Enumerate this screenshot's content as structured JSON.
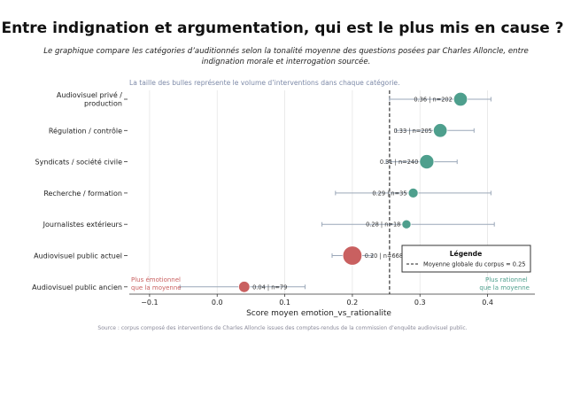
{
  "title": "Entre indignation et argumentation, qui est le plus mis en cause ?",
  "subtitle": "Le graphique compare les catégories d’auditionnés selon la tonalité moyenne des questions posées par Charles Alloncle, entre indignation morale et interrogation sourcée.",
  "source": "Source : corpus composé des interventions de Charles Alloncle issues des comptes-rendus de la commission d’enquête audiovisuel public.",
  "colors": {
    "emotion": "#c96060",
    "rational": "#4e9f8d",
    "error_bar": "#9aa7b8",
    "mean_line": "#222222",
    "note_text": "#7d8aa8",
    "grid": "#e6e6e6"
  },
  "chart_data": {
    "type": "scatter",
    "title": "",
    "xlabel": "Score moyen emotion_vs_rationalite",
    "ylabel": "",
    "xlim": [
      -0.13,
      0.47
    ],
    "xticks": [
      "−0.1",
      "0.0",
      "0.1",
      "0.2",
      "0.3",
      "0.4"
    ],
    "xtick_values": [
      -0.1,
      0,
      0.1,
      0.2,
      0.3,
      0.4
    ],
    "grid": "vertical",
    "size_note": "La taille des bulles représente le volume d’interventions dans chaque catégorie.",
    "mean": 0.255,
    "legend": {
      "title": "Légende",
      "entry": "Moyenne globale du corpus = 0.25",
      "position": "bottom-right"
    },
    "left_note": "Plus émotionnel que la moyenne",
    "right_note": "Plus rationnel que la moyenne",
    "categories": [
      {
        "name": "Audiovisuel privé / production",
        "value": 0.36,
        "n": 202,
        "err_low": 0.255,
        "err_high": 0.405,
        "label": "0.36 | n=202"
      },
      {
        "name": "Régulation / contrôle",
        "value": 0.33,
        "n": 205,
        "err_low": 0.265,
        "err_high": 0.38,
        "label": "0.33 | n=205"
      },
      {
        "name": "Syndicats / société civile",
        "value": 0.31,
        "n": 240,
        "err_low": 0.25,
        "err_high": 0.355,
        "label": "0.31 | n=240"
      },
      {
        "name": "Recherche / formation",
        "value": 0.29,
        "n": 35,
        "err_low": 0.175,
        "err_high": 0.405,
        "label": "0.29 | n=35"
      },
      {
        "name": "Journalistes extérieurs",
        "value": 0.28,
        "n": 18,
        "err_low": 0.155,
        "err_high": 0.41,
        "label": "0.28 | n=18"
      },
      {
        "name": "Audiovisuel public actuel",
        "value": 0.2,
        "n": 668,
        "err_low": 0.17,
        "err_high": 0.23,
        "label": "0.20 | n=668"
      },
      {
        "name": "Audiovisuel public ancien",
        "value": 0.04,
        "n": 79,
        "err_low": -0.055,
        "err_high": 0.13,
        "label": "0.04 | n=79"
      }
    ]
  }
}
